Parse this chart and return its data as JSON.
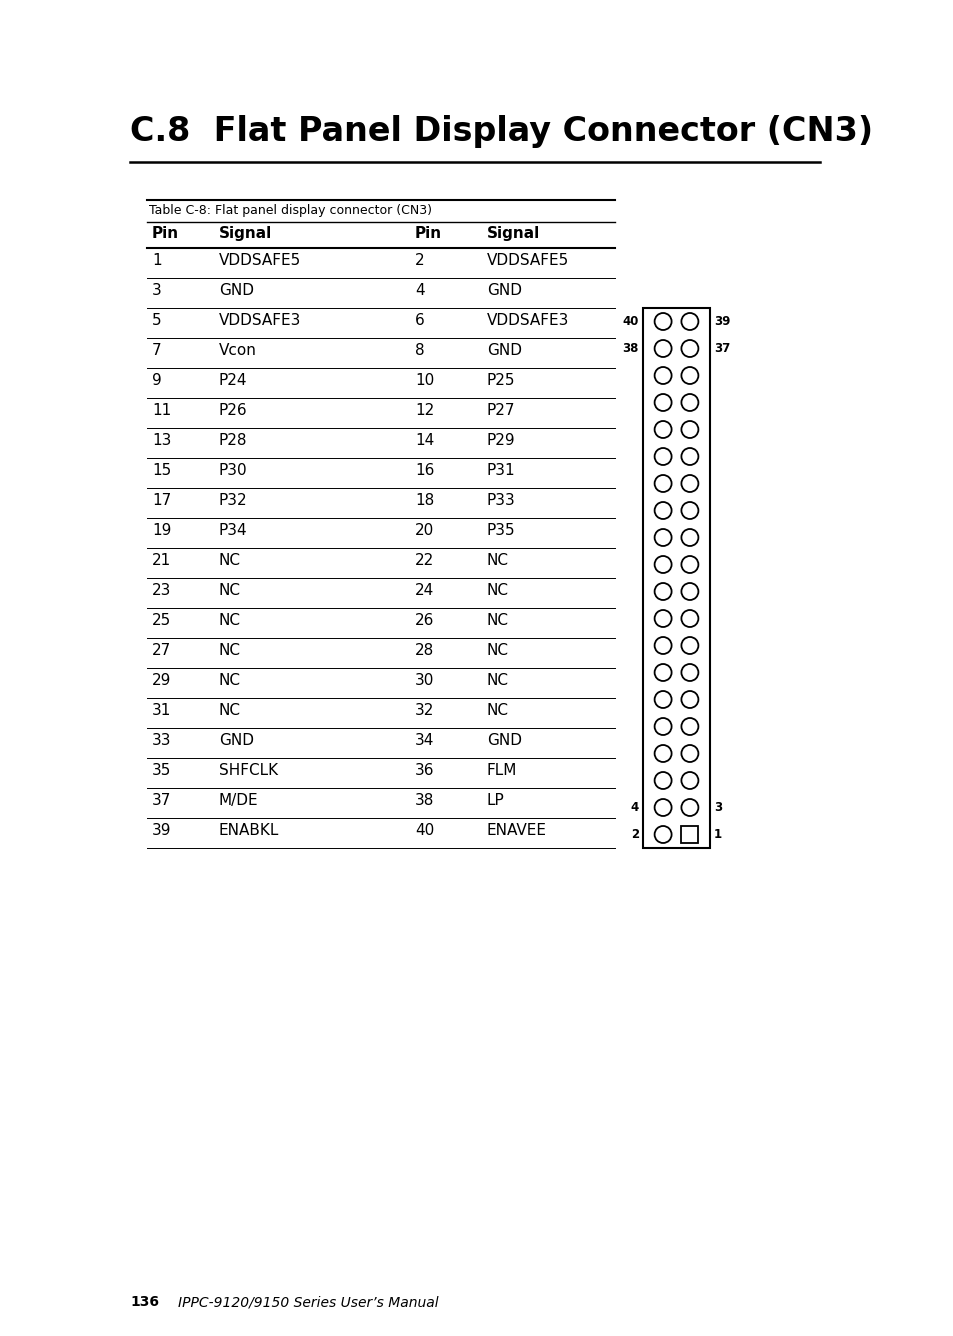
{
  "title": "C.8  Flat Panel Display Connector (CN3)",
  "table_caption": "Table C-8: Flat panel display connector (CN3)",
  "col_headers": [
    "Pin",
    "Signal",
    "Pin",
    "Signal"
  ],
  "rows": [
    [
      "1",
      "VDDSAFE5",
      "2",
      "VDDSAFE5"
    ],
    [
      "3",
      "GND",
      "4",
      "GND"
    ],
    [
      "5",
      "VDDSAFE3",
      "6",
      "VDDSAFE3"
    ],
    [
      "7",
      "Vcon",
      "8",
      "GND"
    ],
    [
      "9",
      "P24",
      "10",
      "P25"
    ],
    [
      "11",
      "P26",
      "12",
      "P27"
    ],
    [
      "13",
      "P28",
      "14",
      "P29"
    ],
    [
      "15",
      "P30",
      "16",
      "P31"
    ],
    [
      "17",
      "P32",
      "18",
      "P33"
    ],
    [
      "19",
      "P34",
      "20",
      "P35"
    ],
    [
      "21",
      "NC",
      "22",
      "NC"
    ],
    [
      "23",
      "NC",
      "24",
      "NC"
    ],
    [
      "25",
      "NC",
      "26",
      "NC"
    ],
    [
      "27",
      "NC",
      "28",
      "NC"
    ],
    [
      "29",
      "NC",
      "30",
      "NC"
    ],
    [
      "31",
      "NC",
      "32",
      "NC"
    ],
    [
      "33",
      "GND",
      "34",
      "GND"
    ],
    [
      "35",
      "SHFCLK",
      "36",
      "FLM"
    ],
    [
      "37",
      "M/DE",
      "38",
      "LP"
    ],
    [
      "39",
      "ENABKL",
      "40",
      "ENAVEE"
    ]
  ],
  "footer_text": "136",
  "footer_italic": "IPPC-9120/9150 Series User’s Manual",
  "bg_color": "#ffffff"
}
